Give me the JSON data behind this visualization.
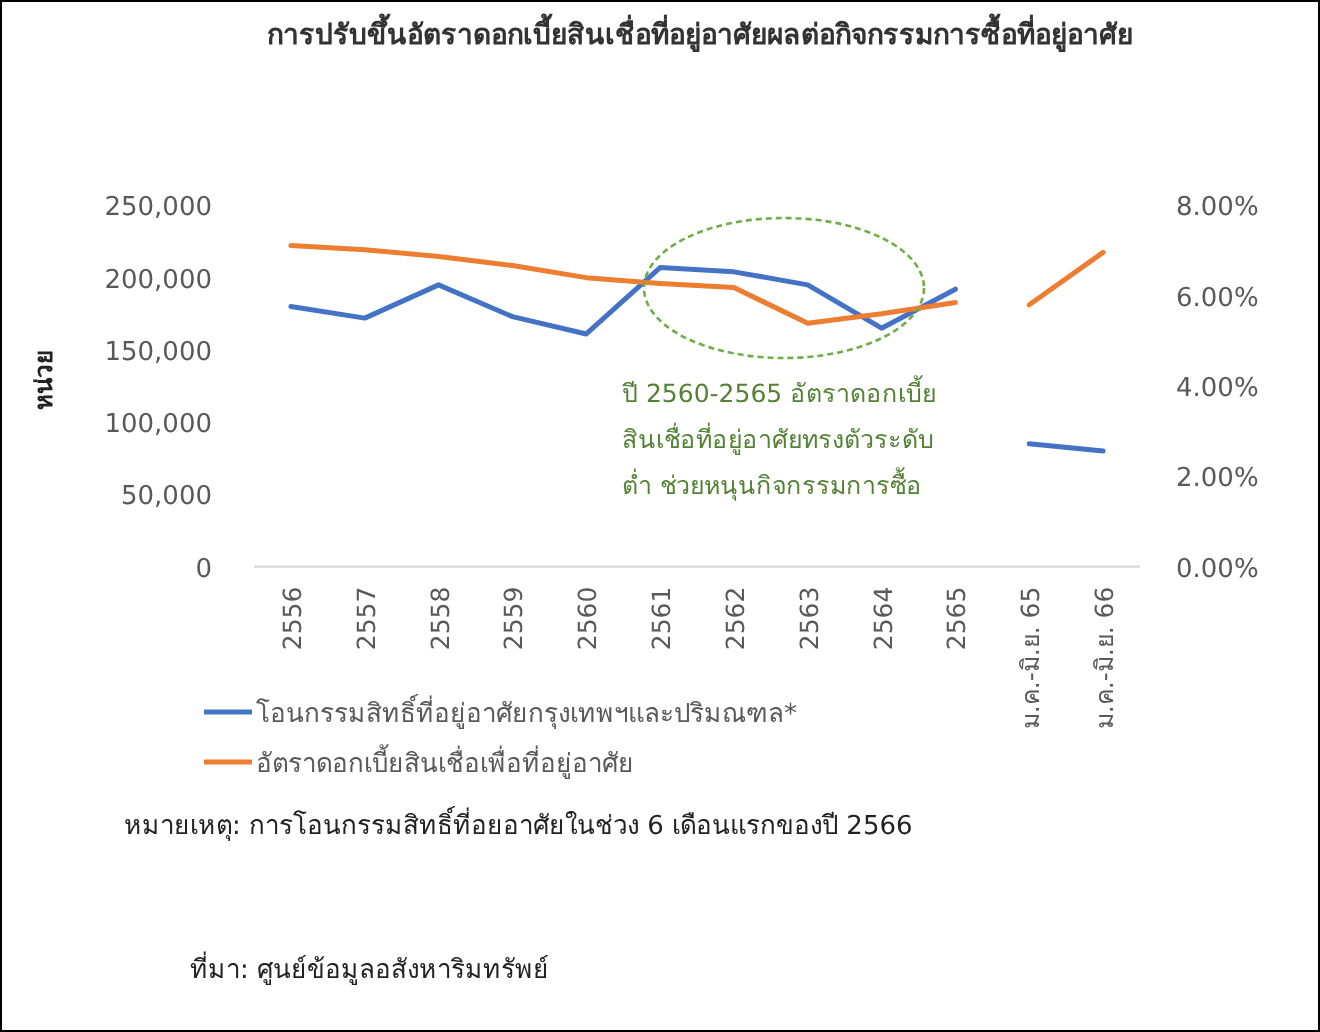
{
  "chart_data": {
    "type": "line",
    "title": "การปรับขึ้นอัตราดอกเบี้ยสินเชื่อที่อยู่อาศัยผลต่อกิจกรรมการซื้อที่อยู่อาศัย",
    "ylabel": "หน่วย",
    "categories": [
      "2556",
      "2557",
      "2558",
      "2559",
      "2560",
      "2561",
      "2562",
      "2563",
      "2564",
      "2565",
      "ม.ค.-มิ.ย. 65",
      "ม.ค.-มิ.ย. 66"
    ],
    "series": [
      {
        "name": "โอนกรรมสิทธิ์ที่อยู่อาศัยกรุงเทพฯและปริมณฑล*",
        "color": "#4472c4",
        "values": [
          180000,
          172000,
          195000,
          173000,
          161000,
          207000,
          204000,
          195000,
          165000,
          192000,
          null,
          null
        ]
      },
      {
        "name": "อัตราดอกเบี้ยสินเชื่อเพื่อที่อยู่อาศัย",
        "color": "#ed7d31",
        "axis": "y2",
        "values": [
          7.11,
          7.02,
          6.87,
          6.67,
          6.4,
          6.27,
          6.18,
          5.39,
          5.6,
          5.85,
          null,
          null
        ]
      },
      {
        "color": "#4472c4",
        "values": [
          null,
          null,
          null,
          null,
          null,
          null,
          null,
          null,
          null,
          null,
          85000,
          80000
        ]
      },
      {
        "color": "#ed7d31",
        "axis": "y2",
        "values": [
          null,
          null,
          null,
          null,
          null,
          null,
          null,
          null,
          null,
          null,
          5.8,
          6.96
        ]
      }
    ],
    "ylim": [
      0,
      250000
    ],
    "yticks": [
      {
        "value": 0,
        "label": "0"
      },
      {
        "value": 50000,
        "label": "50,000"
      },
      {
        "value": 100000,
        "label": "100,000"
      },
      {
        "value": 150000,
        "label": "150,000"
      },
      {
        "value": 200000,
        "label": "200,000"
      },
      {
        "value": 250000,
        "label": "250,000"
      }
    ],
    "y2lim": [
      0,
      8
    ],
    "y2ticks": [
      {
        "value": 0,
        "label": "0.00%"
      },
      {
        "value": 2,
        "label": "2.00%"
      },
      {
        "value": 4,
        "label": "4.00%"
      },
      {
        "value": 6,
        "label": "6.00%"
      },
      {
        "value": 8,
        "label": "8.00%"
      }
    ],
    "legend": "bottom",
    "grid": false,
    "annotations": [
      "ปี 2560-2565  อัตราดอกเบี้ย\nสินเชื่อที่อยู่อาศัยทรงตัวระดับ\nต่ำ ช่วยหนุนกิจกรรมการซื้อ",
      "หมายเหตุ: การโอนกรรมสิทธิ์ที่อยอาศัยในช่วง 6 เดือนแรกของปี 2566",
      "ที่มา: ศูนย์ข้อมูลอสังหาริมทรัพย์"
    ]
  }
}
